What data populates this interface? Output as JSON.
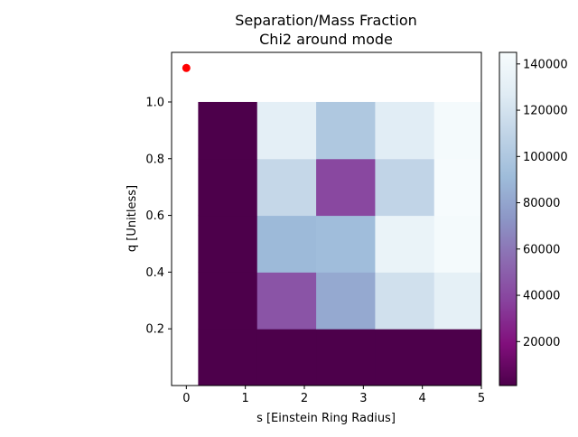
{
  "chart_data": {
    "type": "heatmap",
    "title": "Separation/Mass Fraction",
    "subtitle": "Chi2 around mode",
    "xlabel": "s [Einstein Ring Radius]",
    "ylabel": "q [Unitless]",
    "xlim": [
      -0.25,
      5
    ],
    "ylim": [
      0,
      1.175
    ],
    "x_ticks": [
      0,
      1,
      2,
      3,
      4,
      5
    ],
    "x_tick_labels": [
      "0",
      "1",
      "2",
      "3",
      "4",
      "5"
    ],
    "y_ticks": [
      0.2,
      0.4,
      0.6,
      0.8,
      1.0
    ],
    "y_tick_labels": [
      "0.2",
      "0.4",
      "0.6",
      "0.8",
      "1.0"
    ],
    "x_edges": [
      0.2,
      1.2,
      2.2,
      3.2,
      4.2,
      5.0
    ],
    "y_edges": [
      0,
      0.2,
      0.4,
      0.6,
      0.8,
      1.0
    ],
    "z": [
      [
        1000,
        1000,
        1000,
        1000,
        1000
      ],
      [
        1000,
        45000,
        82000,
        118000,
        131000
      ],
      [
        1000,
        90000,
        92000,
        135000,
        143000
      ],
      [
        1000,
        112000,
        40000,
        110000,
        144000
      ],
      [
        1000,
        130000,
        100000,
        128000,
        143000
      ]
    ],
    "colormap": "BuPu_r",
    "colorbar": {
      "min": 1000,
      "max": 145000,
      "ticks": [
        20000,
        40000,
        60000,
        80000,
        100000,
        120000,
        140000
      ],
      "tick_labels": [
        "20000",
        "40000",
        "60000",
        "80000",
        "100000",
        "120000",
        "140000"
      ]
    },
    "points": [
      {
        "x": 0,
        "y": 1.12,
        "color": "#ff0000"
      }
    ],
    "grid": false,
    "legend": "none"
  }
}
